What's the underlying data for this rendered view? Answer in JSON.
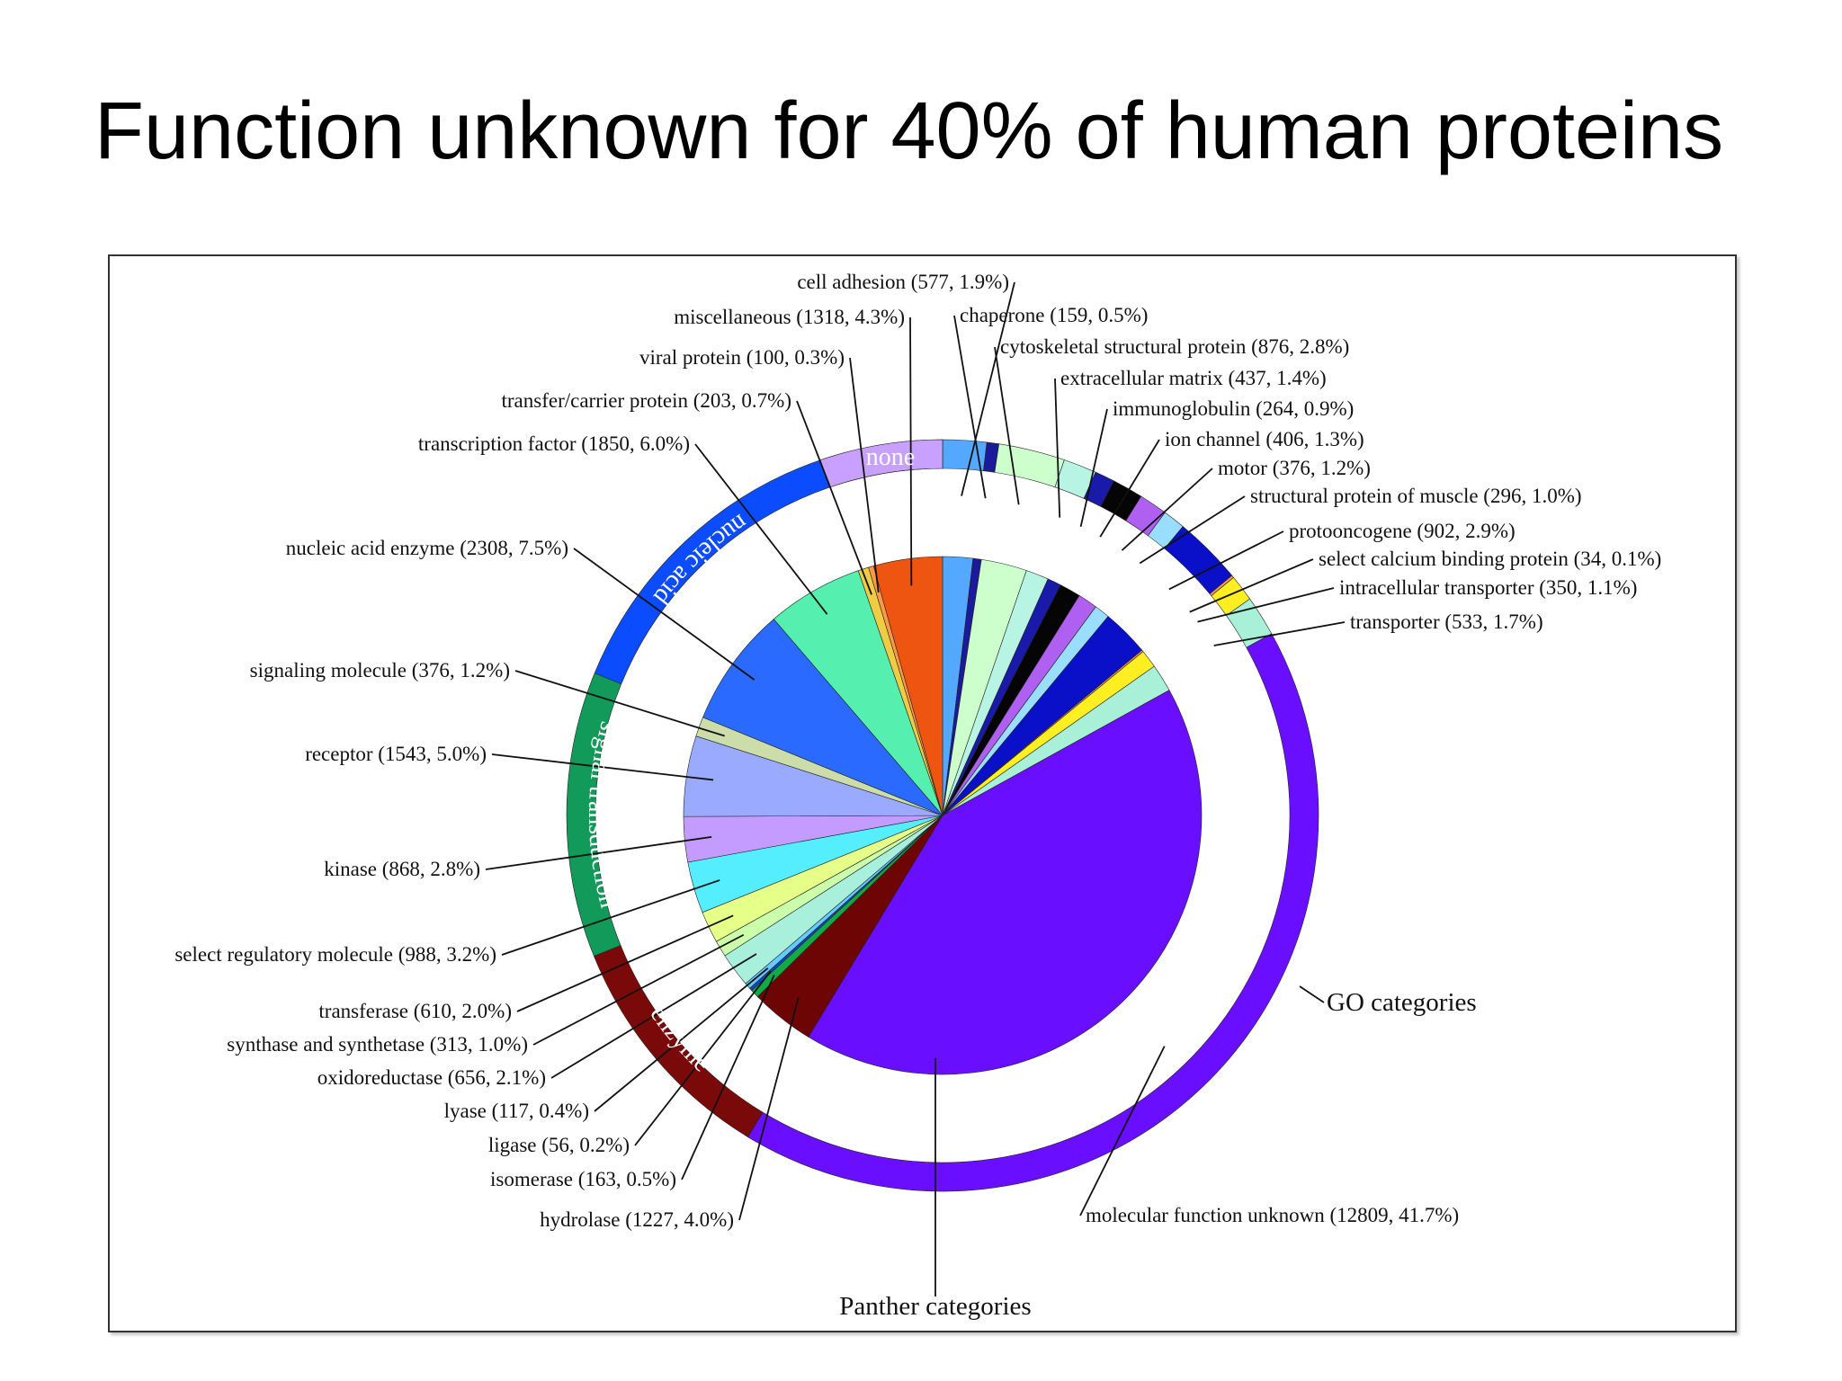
{
  "slide": {
    "title": "Function unknown for 40% of human proteins"
  },
  "chart_data": {
    "type": "pie",
    "subtype": "nested-donut",
    "title": "Function unknown for 40% of human proteins",
    "outer_ring_label": "GO categories",
    "inner_ring_label": "Panther categories",
    "go_categories": [
      {
        "name": "nucleic acid binding",
        "color": "#0c4cff"
      },
      {
        "name": "signal transduction",
        "color": "#119a5a"
      },
      {
        "name": "enzyme",
        "color": "#7a0a0a"
      },
      {
        "name": "none",
        "color": "#c8a0ff"
      }
    ],
    "slices": [
      {
        "label": "cell adhesion (577, 1.9%)",
        "name": "cell adhesion",
        "count": 577,
        "percent": 1.9,
        "color": "#55a8ff",
        "go": "none"
      },
      {
        "label": "chaperone (159, 0.5%)",
        "name": "chaperone",
        "count": 159,
        "percent": 0.5,
        "color": "#1a1a9a",
        "go": "none"
      },
      {
        "label": "cytoskeletal structural protein (876, 2.8%)",
        "name": "cytoskeletal structural protein",
        "count": 876,
        "percent": 2.8,
        "color": "#ccffcc",
        "go": "none"
      },
      {
        "label": "extracellular matrix (437, 1.4%)",
        "name": "extracellular matrix",
        "count": 437,
        "percent": 1.4,
        "color": "#b8f4e4",
        "go": "none"
      },
      {
        "label": "immunoglobulin (264, 0.9%)",
        "name": "immunoglobulin",
        "count": 264,
        "percent": 0.9,
        "color": "#1a1aaa",
        "go": "none"
      },
      {
        "label": "ion channel (406, 1.3%)",
        "name": "ion channel",
        "count": 406,
        "percent": 1.3,
        "color": "#050505",
        "go": "none"
      },
      {
        "label": "motor (376, 1.2%)",
        "name": "motor",
        "count": 376,
        "percent": 1.2,
        "color": "#b060f0",
        "go": "none"
      },
      {
        "label": "structural protein of muscle (296, 1.0%)",
        "name": "structural protein of muscle",
        "count": 296,
        "percent": 1.0,
        "color": "#99ddff",
        "go": "none"
      },
      {
        "label": "protooncogene (902, 2.9%)",
        "name": "protooncogene",
        "count": 902,
        "percent": 2.9,
        "color": "#0a10c8",
        "go": "none"
      },
      {
        "label": "select calcium binding protein (34, 0.1%)",
        "name": "select calcium binding protein",
        "count": 34,
        "percent": 0.1,
        "color": "#ff9955",
        "go": "none"
      },
      {
        "label": "intracellular transporter (350, 1.1%)",
        "name": "intracellular transporter",
        "count": 350,
        "percent": 1.1,
        "color": "#ffee22",
        "go": "none"
      },
      {
        "label": "transporter (533, 1.7%)",
        "name": "transporter",
        "count": 533,
        "percent": 1.7,
        "color": "#a8f0d8",
        "go": "none"
      },
      {
        "label": "molecular function unknown (12809, 41.7%)",
        "name": "molecular function unknown",
        "count": 12809,
        "percent": 41.7,
        "color": "#6a0eff",
        "go": "none"
      },
      {
        "label": "hydrolase (1227, 4.0%)",
        "name": "hydrolase",
        "count": 1227,
        "percent": 4.0,
        "color": "#6e0505",
        "go": "enzyme"
      },
      {
        "label": "isomerase (163, 0.5%)",
        "name": "isomerase",
        "count": 163,
        "percent": 0.5,
        "color": "#11aa44",
        "go": "enzyme"
      },
      {
        "label": "ligase (56, 0.2%)",
        "name": "ligase",
        "count": 56,
        "percent": 0.2,
        "color": "#1144cc",
        "go": "enzyme"
      },
      {
        "label": "lyase (117, 0.4%)",
        "name": "lyase",
        "count": 117,
        "percent": 0.4,
        "color": "#66ccff",
        "go": "enzyme"
      },
      {
        "label": "oxidoreductase (656, 2.1%)",
        "name": "oxidoreductase",
        "count": 656,
        "percent": 2.1,
        "color": "#a8f0dc",
        "go": "enzyme"
      },
      {
        "label": "synthase and synthetase (313, 1.0%)",
        "name": "synthase and synthetase",
        "count": 313,
        "percent": 1.0,
        "color": "#ccffaa",
        "go": "enzyme"
      },
      {
        "label": "transferase (610, 2.0%)",
        "name": "transferase",
        "count": 610,
        "percent": 2.0,
        "color": "#e6ff88",
        "go": "enzyme"
      },
      {
        "label": "select regulatory molecule (988, 3.2%)",
        "name": "select regulatory molecule",
        "count": 988,
        "percent": 3.2,
        "color": "#55eeff",
        "go": "signal transduction"
      },
      {
        "label": "kinase (868, 2.8%)",
        "name": "kinase",
        "count": 868,
        "percent": 2.8,
        "color": "#c49cff",
        "go": "signal transduction"
      },
      {
        "label": "receptor (1543, 5.0%)",
        "name": "receptor",
        "count": 1543,
        "percent": 5.0,
        "color": "#99aaff",
        "go": "signal transduction"
      },
      {
        "label": "signaling molecule (376, 1.2%)",
        "name": "signaling molecule",
        "count": 376,
        "percent": 1.2,
        "color": "#ccddaa",
        "go": "signal transduction"
      },
      {
        "label": "nucleic acid enzyme (2308, 7.5%)",
        "name": "nucleic acid enzyme",
        "count": 2308,
        "percent": 7.5,
        "color": "#2a6aff",
        "go": "nucleic acid binding"
      },
      {
        "label": "transcription factor (1850, 6.0%)",
        "name": "transcription factor",
        "count": 1850,
        "percent": 6.0,
        "color": "#55f0b0",
        "go": "nucleic acid binding"
      },
      {
        "label": "transfer/carrier protein (203, 0.7%)",
        "name": "transfer/carrier protein",
        "count": 203,
        "percent": 0.7,
        "color": "#eecc44",
        "go": "none"
      },
      {
        "label": "viral protein (100, 0.3%)",
        "name": "viral protein",
        "count": 100,
        "percent": 0.3,
        "color": "#ff9944",
        "go": "none"
      },
      {
        "label": "miscellaneous (1318, 4.3%)",
        "name": "miscellaneous",
        "count": 1318,
        "percent": 4.3,
        "color": "#ee5510",
        "go": "none"
      }
    ]
  }
}
